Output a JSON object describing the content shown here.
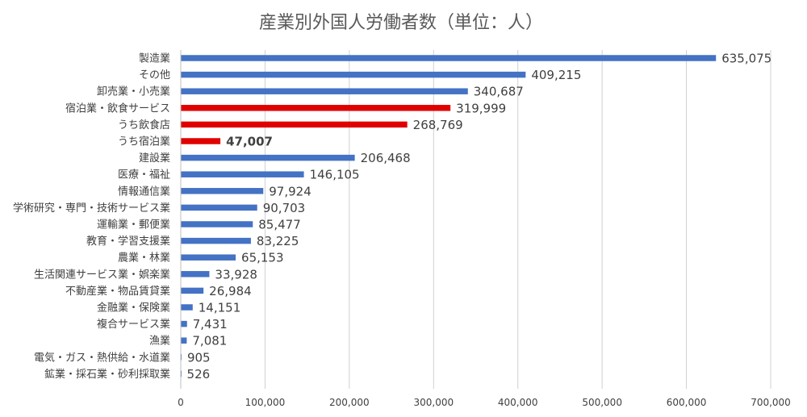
{
  "chart_data": {
    "type": "bar",
    "orientation": "horizontal",
    "title": "産業別外国人労働者数（単位：人）",
    "xlim": [
      0,
      700000
    ],
    "x_ticks": [
      "0",
      "100,000",
      "200,000",
      "300,000",
      "400,000",
      "500,000",
      "600,000",
      "700,000"
    ],
    "x_tick_values": [
      0,
      100000,
      200000,
      300000,
      400000,
      500000,
      600000,
      700000
    ],
    "grid": true,
    "colors": {
      "default": "#4472c4",
      "highlight": "#e00000",
      "text": "#404040"
    },
    "bars": [
      {
        "category": "製造業",
        "value": 635075,
        "label": "635,075",
        "highlight": false
      },
      {
        "category": "その他",
        "value": 409215,
        "label": "409,215",
        "highlight": false
      },
      {
        "category": "卸売業・小売業",
        "value": 340687,
        "label": "340,687",
        "highlight": false
      },
      {
        "category": "宿泊業・飲食サービス",
        "value": 319999,
        "label": "319,999",
        "highlight": true
      },
      {
        "category": "うち飲食店",
        "value": 268769,
        "label": "268,769",
        "highlight": true
      },
      {
        "category": "うち宿泊業",
        "value": 47007,
        "label": "47,007",
        "highlight": true,
        "label_highlight": true
      },
      {
        "category": "建設業",
        "value": 206468,
        "label": "206,468",
        "highlight": false
      },
      {
        "category": "医療・福祉",
        "value": 146105,
        "label": "146,105",
        "highlight": false
      },
      {
        "category": "情報通信業",
        "value": 97924,
        "label": "97,924",
        "highlight": false
      },
      {
        "category": "学術研究・専門・技術サービス業",
        "value": 90703,
        "label": "90,703",
        "highlight": false
      },
      {
        "category": "運輸業・郵便業",
        "value": 85477,
        "label": "85,477",
        "highlight": false
      },
      {
        "category": "教育・学習支援業",
        "value": 83225,
        "label": "83,225",
        "highlight": false
      },
      {
        "category": "農業・林業",
        "value": 65153,
        "label": "65,153",
        "highlight": false
      },
      {
        "category": "生活関連サービス業・娯楽業",
        "value": 33928,
        "label": "33,928",
        "highlight": false
      },
      {
        "category": "不動産業・物品賃貸業",
        "value": 26984,
        "label": "26,984",
        "highlight": false
      },
      {
        "category": "金融業・保険業",
        "value": 14151,
        "label": "14,151",
        "highlight": false
      },
      {
        "category": "複合サービス業",
        "value": 7431,
        "label": "7,431",
        "highlight": false
      },
      {
        "category": "漁業",
        "value": 7081,
        "label": "7,081",
        "highlight": false
      },
      {
        "category": "電気・ガス・熱供給・水道業",
        "value": 905,
        "label": "905",
        "highlight": false
      },
      {
        "category": "鉱業・採石業・砂利採取業",
        "value": 526,
        "label": "526",
        "highlight": false
      }
    ]
  }
}
